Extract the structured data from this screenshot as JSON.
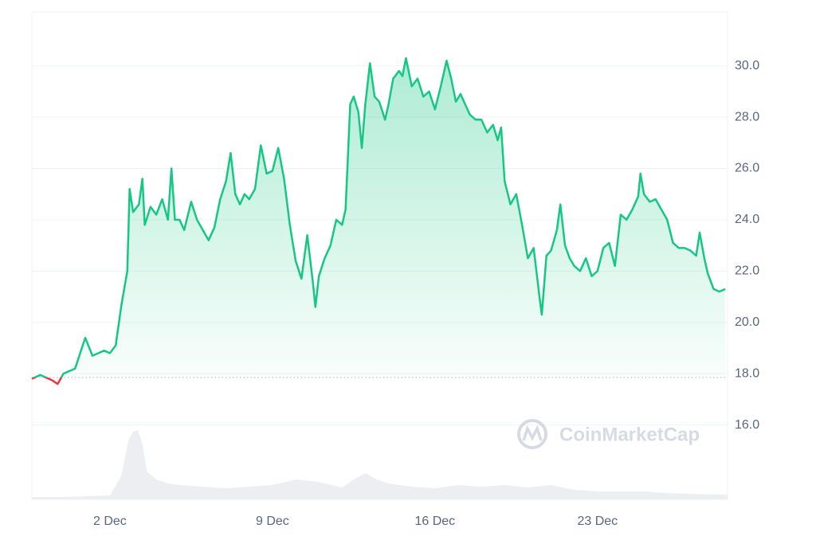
{
  "chart_data": {
    "type": "line",
    "x": [
      -1.36,
      -1,
      -0.5,
      -0.25,
      0,
      0.5,
      0.94,
      1.25,
      1.75,
      2,
      2.25,
      2.5,
      2.75,
      2.85,
      3,
      3.25,
      3.4,
      3.5,
      3.75,
      4,
      4.25,
      4.5,
      4.65,
      4.8,
      5,
      5.2,
      5.5,
      5.75,
      6,
      6.25,
      6.5,
      6.75,
      7,
      7.2,
      7.4,
      7.6,
      7.8,
      8,
      8.25,
      8.5,
      8.75,
      9,
      9.25,
      9.5,
      9.75,
      10,
      10.25,
      10.5,
      10.75,
      10.85,
      11,
      11.25,
      11.5,
      11.75,
      12,
      12.15,
      12.35,
      12.5,
      12.7,
      12.85,
      13,
      13.2,
      13.4,
      13.6,
      13.85,
      14,
      14.2,
      14.45,
      14.6,
      14.75,
      15,
      15.25,
      15.5,
      15.75,
      16,
      16.25,
      16.5,
      16.7,
      16.9,
      17.1,
      17.3,
      17.5,
      17.75,
      18,
      18.25,
      18.5,
      18.7,
      18.85,
      19,
      19.25,
      19.5,
      19.75,
      20,
      20.25,
      20.5,
      20.6,
      20.8,
      21,
      21.25,
      21.4,
      21.6,
      21.8,
      22,
      22.25,
      22.5,
      22.75,
      23,
      23.25,
      23.5,
      23.75,
      24,
      24.25,
      24.5,
      24.75,
      24.85,
      25,
      25.25,
      25.5,
      25.75,
      26,
      26.25,
      26.5,
      26.75,
      27,
      27.25,
      27.4,
      27.6,
      27.75,
      28,
      28.25,
      28.5
    ],
    "values": [
      17.8,
      17.95,
      17.75,
      17.6,
      18.0,
      18.2,
      19.4,
      18.7,
      18.9,
      18.8,
      19.1,
      20.7,
      22.0,
      25.2,
      24.3,
      24.6,
      25.6,
      23.8,
      24.5,
      24.2,
      24.8,
      24.0,
      26.0,
      24.0,
      24.0,
      23.6,
      24.7,
      24.0,
      23.6,
      23.2,
      23.7,
      24.8,
      25.5,
      26.6,
      25.0,
      24.6,
      25.0,
      24.8,
      25.2,
      26.9,
      25.8,
      25.9,
      26.8,
      25.6,
      23.8,
      22.4,
      21.7,
      23.4,
      21.5,
      20.6,
      21.8,
      22.5,
      23.0,
      24.0,
      23.8,
      24.4,
      28.5,
      28.8,
      28.2,
      26.8,
      28.5,
      30.1,
      28.8,
      28.6,
      27.9,
      28.5,
      29.5,
      29.8,
      29.6,
      30.3,
      29.2,
      29.5,
      28.8,
      29.0,
      28.3,
      29.2,
      30.2,
      29.5,
      28.6,
      28.9,
      28.5,
      28.1,
      27.9,
      27.9,
      27.4,
      27.7,
      27.1,
      27.6,
      25.5,
      24.6,
      25.0,
      23.8,
      22.5,
      22.9,
      21.0,
      20.3,
      22.6,
      22.8,
      23.6,
      24.6,
      23.0,
      22.5,
      22.2,
      22.0,
      22.5,
      21.8,
      22.0,
      22.9,
      23.1,
      22.2,
      24.2,
      24.0,
      24.4,
      24.9,
      25.8,
      25.0,
      24.7,
      24.8,
      24.4,
      24.0,
      23.1,
      22.9,
      22.9,
      22.8,
      22.6,
      23.5,
      22.5,
      21.9,
      21.3,
      21.2,
      21.3
    ],
    "color": "#16c784",
    "down_color": "#ea3943",
    "baseline": 17.85,
    "xlim": [
      -1.36,
      28.6
    ],
    "ylim": [
      13.1,
      32.1
    ],
    "xticks": [
      {
        "value": 2,
        "label": "2 Dec"
      },
      {
        "value": 9,
        "label": "9 Dec"
      },
      {
        "value": 16,
        "label": "16 Dec"
      },
      {
        "value": 23,
        "label": "23 Dec"
      }
    ],
    "yticks": [
      {
        "value": 16,
        "label": "16.0"
      },
      {
        "value": 18,
        "label": "18.0"
      },
      {
        "value": 20,
        "label": "20.0"
      },
      {
        "value": 22,
        "label": "22.0"
      },
      {
        "value": 24,
        "label": "24.0"
      },
      {
        "value": 26,
        "label": "26.0"
      },
      {
        "value": 28,
        "label": "28.0"
      },
      {
        "value": 30,
        "label": "30.0"
      }
    ],
    "grid": true,
    "volume": {
      "axis": "y2",
      "color": "#eceef2",
      "x": [
        -1.36,
        0,
        1,
        2,
        2.5,
        2.8,
        3,
        3.2,
        3.4,
        3.6,
        4,
        4.5,
        5,
        6,
        7,
        8,
        9,
        10,
        11,
        12,
        12.5,
        13,
        13.5,
        14,
        15,
        16,
        17,
        18,
        19,
        20,
        21,
        22,
        23,
        24,
        25,
        26,
        27,
        28.6
      ],
      "values": [
        0.3,
        0.3,
        0.4,
        0.5,
        3,
        7.5,
        8.5,
        8.7,
        7,
        3.5,
        2.5,
        2,
        1.8,
        1.6,
        1.4,
        1.6,
        1.8,
        2.5,
        2.2,
        1.5,
        2.5,
        3.3,
        2.5,
        2,
        1.6,
        1.4,
        1.8,
        1.6,
        1.8,
        1.5,
        1.8,
        1.2,
        1,
        1,
        1,
        0.8,
        0.7,
        0.6
      ]
    },
    "y2lim": [
      0,
      10
    ],
    "watermark": "CoinMarketCap"
  }
}
